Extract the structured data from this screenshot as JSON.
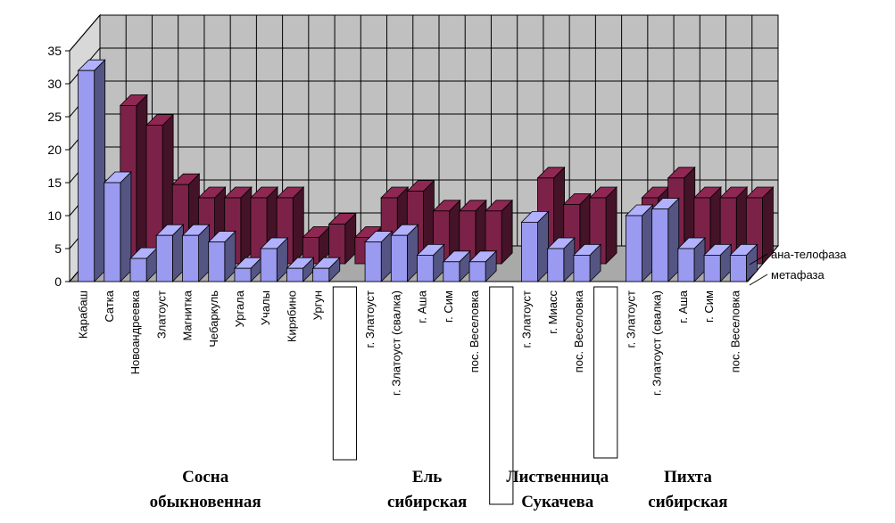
{
  "chart_data": {
    "type": "bar",
    "title": "",
    "xlabel": "",
    "ylabel": "",
    "ylim": [
      0,
      35
    ],
    "yticks": [
      "0",
      "5",
      "10",
      "15",
      "20",
      "25",
      "30",
      "35"
    ],
    "grid": true,
    "three_d": true,
    "legend_position": "right",
    "categories": [
      "Карабаш",
      "Сатка",
      "Новоандреевка",
      "Златоуст",
      "Магнитка",
      "Чебаркуль",
      "Ургала",
      "Учалы",
      "Кирябино",
      "Ургун",
      "",
      "г. Златоуст",
      "г. Златоуст (свалка)",
      "г. Аша",
      "г. Сим",
      "пос. Веселовка",
      "",
      "г. Златоуст",
      "г. Миасс",
      "пос. Веселовка",
      "",
      "г. Златоуст",
      "г. Златоуст (свалка)",
      "г. Аша",
      "г. Сим",
      "пос. Веселовка"
    ],
    "series": [
      {
        "name": "метафаза",
        "color": "#9a9af0",
        "values": [
          32,
          15,
          3.5,
          7,
          7,
          6,
          2,
          5,
          2,
          2,
          null,
          6,
          7,
          4,
          3,
          3,
          null,
          9,
          5,
          4,
          null,
          10,
          11,
          5,
          4,
          4
        ]
      },
      {
        "name": "ана-телофаза",
        "color": "#7c2248",
        "values": [
          0,
          24,
          21,
          12,
          10,
          10,
          10,
          10,
          4,
          6,
          4,
          10,
          11,
          8,
          8,
          8,
          null,
          13,
          9,
          10,
          null,
          10,
          13,
          10,
          10,
          10
        ]
      }
    ],
    "groups": [
      {
        "label_lines": [
          "Сосна",
          "обыкновенная"
        ],
        "start": 0,
        "end": 9
      },
      {
        "label_lines": [
          "Ель",
          "сибирская"
        ],
        "start": 11,
        "end": 15
      },
      {
        "label_lines": [
          "Лиственница",
          "Сукачева"
        ],
        "start": 17,
        "end": 19
      },
      {
        "label_lines": [
          "Пихта",
          "сибирская"
        ],
        "start": 21,
        "end": 25
      }
    ]
  }
}
